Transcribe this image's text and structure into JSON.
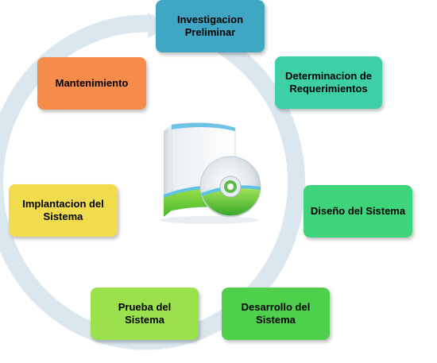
{
  "diagram": {
    "stages": [
      {
        "id": "investigacion",
        "label": "Investigacion\nPreliminar",
        "color": "#3fa6c4",
        "text": "light"
      },
      {
        "id": "requerimientos",
        "label": "Determinacion de\nRequerimientos",
        "color": "#3dcfa6",
        "text": "light"
      },
      {
        "id": "diseno",
        "label": "Diseño del Sistema",
        "color": "#3ed47c",
        "text": "light"
      },
      {
        "id": "desarrollo",
        "label": "Desarrollo del\nSistema",
        "color": "#4ed04c",
        "text": "light"
      },
      {
        "id": "prueba",
        "label": "Prueba del\nSistema",
        "color": "#9be14e",
        "text": "light"
      },
      {
        "id": "implantacion",
        "label": "Implantacion del\nSistema",
        "color": "#f1dc4e",
        "text": "light"
      },
      {
        "id": "mantenimiento",
        "label": "Mantenimiento",
        "color": "#f58c4c",
        "text": "light"
      }
    ],
    "ring_color": "#dbe7ef",
    "center_icon": "software-box-cd-icon"
  }
}
